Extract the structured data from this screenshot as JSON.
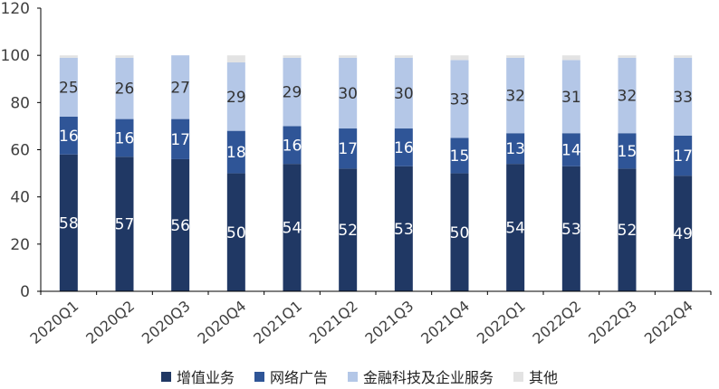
{
  "chart_data": {
    "type": "bar",
    "stacked": true,
    "categories": [
      "2020Q1",
      "2020Q2",
      "2020Q3",
      "2020Q4",
      "2021Q1",
      "2021Q2",
      "2021Q3",
      "2021Q4",
      "2022Q1",
      "2022Q2",
      "2022Q3",
      "2022Q4"
    ],
    "series": [
      {
        "name": "增值业务",
        "color": "#203864",
        "label_color": "#ffffff",
        "values": [
          58,
          57,
          56,
          50,
          54,
          52,
          53,
          50,
          54,
          53,
          52,
          49
        ]
      },
      {
        "name": "网络广告",
        "color": "#2f5597",
        "label_color": "#ffffff",
        "values": [
          16,
          16,
          17,
          18,
          16,
          17,
          16,
          15,
          13,
          14,
          15,
          17
        ]
      },
      {
        "name": "金融科技及企业服务",
        "color": "#b4c7e7",
        "label_color": "#333333",
        "values": [
          25,
          26,
          27,
          29,
          29,
          30,
          30,
          33,
          32,
          31,
          32,
          33
        ]
      },
      {
        "name": "其他",
        "color": "#e3e3e3",
        "label_color": "#333333",
        "values": [
          1,
          1,
          0,
          3,
          1,
          1,
          1,
          2,
          1,
          2,
          1,
          1
        ]
      }
    ],
    "show_labels": [
      true,
      true,
      true,
      false
    ],
    "yticks": [
      0,
      20,
      40,
      60,
      80,
      100,
      120
    ],
    "ylim": [
      0,
      120
    ],
    "title": "",
    "xlabel": "",
    "ylabel": "",
    "grid": false,
    "legend_position": "bottom"
  }
}
